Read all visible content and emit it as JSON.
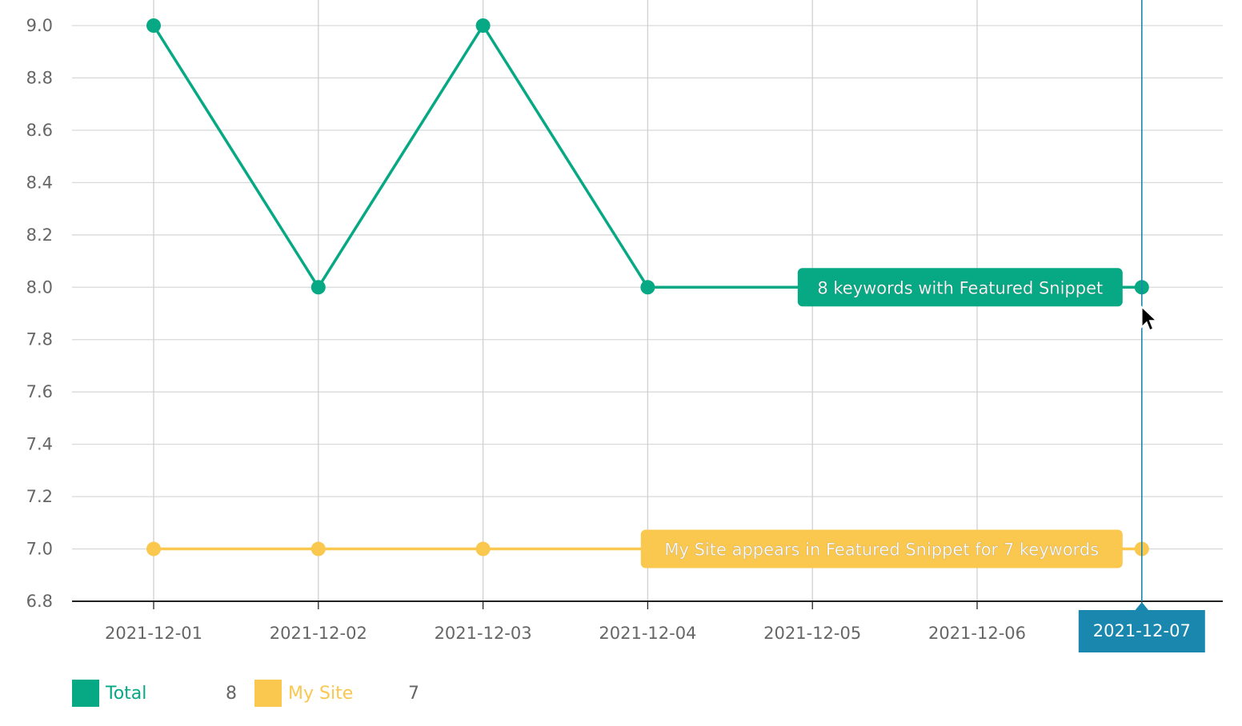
{
  "chart_data": {
    "type": "line",
    "x": [
      "2021-12-01",
      "2021-12-02",
      "2021-12-03",
      "2021-12-04",
      "2021-12-05",
      "2021-12-06",
      "2021-12-07"
    ],
    "ylim": [
      6.8,
      9.0
    ],
    "yticks": [
      "6.8",
      "7.0",
      "7.2",
      "7.4",
      "7.6",
      "7.8",
      "8.0",
      "8.2",
      "8.4",
      "8.6",
      "8.8",
      "9.0"
    ],
    "grid": true,
    "legend_position": "bottom-left",
    "series": [
      {
        "name": "Total",
        "color": "#07a884",
        "values": [
          9,
          8,
          9,
          8,
          null,
          null,
          8
        ]
      },
      {
        "name": "My Site",
        "color": "#fac74f",
        "values": [
          7,
          7,
          7,
          null,
          null,
          null,
          7
        ]
      }
    ],
    "hover": {
      "x": "2021-12-07",
      "x_label_color": "#1a87ae",
      "tooltips": [
        {
          "series": "Total",
          "text": "8 keywords with Featured Snippet"
        },
        {
          "series": "My Site",
          "text": "My Site appears in Featured Snippet for 7 keywords"
        }
      ]
    },
    "legend": [
      {
        "name": "Total",
        "value": "8",
        "color": "#07a884"
      },
      {
        "name": "My Site",
        "value": "7",
        "color": "#fac74f"
      }
    ]
  }
}
